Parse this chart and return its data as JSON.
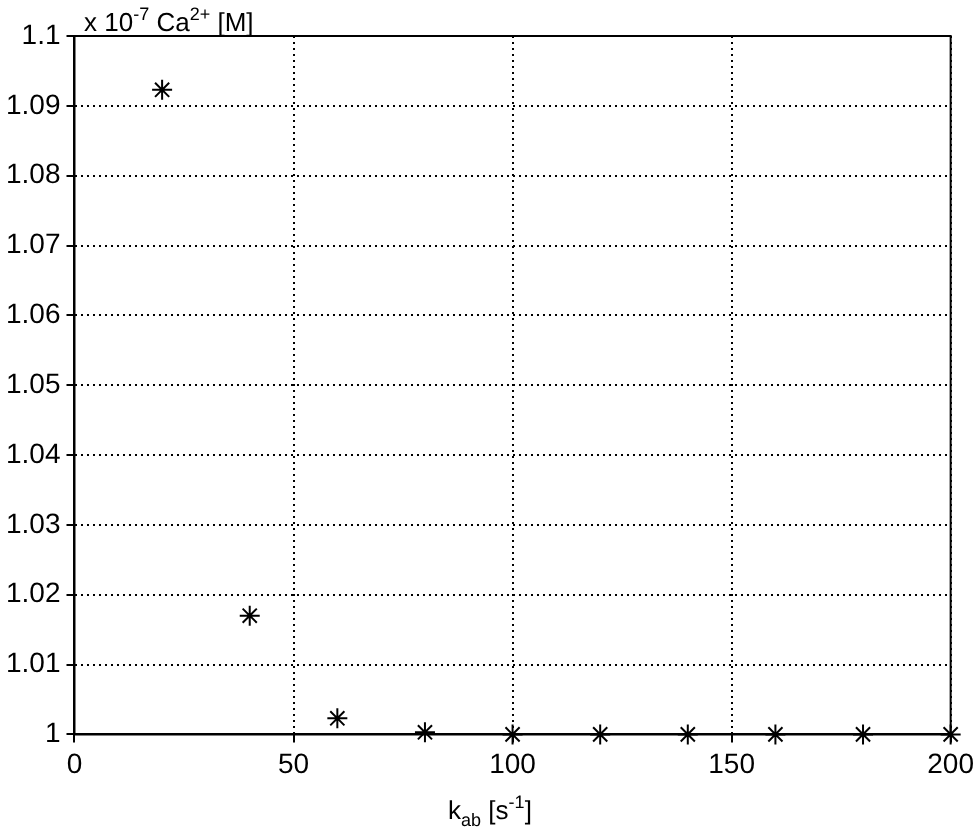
{
  "chart_data": {
    "type": "scatter",
    "xlabel": "k$_{ab}$ [s$^{-1}$]",
    "ylabel": "x 10$^{-7}$ Ca$^{2+}$ [M]",
    "x": [
      20,
      40,
      60,
      80,
      100,
      120,
      140,
      160,
      180,
      200
    ],
    "series": [
      {
        "color": "#000000",
        "values": [
          1.0923,
          1.017,
          1.0023,
          1.0003,
          1,
          1,
          1,
          1,
          1,
          1
        ]
      }
    ],
    "xlim": [
      0,
      200
    ],
    "xticks": [
      0,
      50,
      100,
      150,
      200
    ],
    "ylim": [
      1,
      1.1
    ],
    "yticks": [
      1,
      1.01,
      1.02,
      1.03,
      1.04,
      1.05,
      1.06,
      1.07,
      1.08,
      1.09,
      1.1
    ],
    "grid": true,
    "marker": "cross",
    "legend": false
  }
}
